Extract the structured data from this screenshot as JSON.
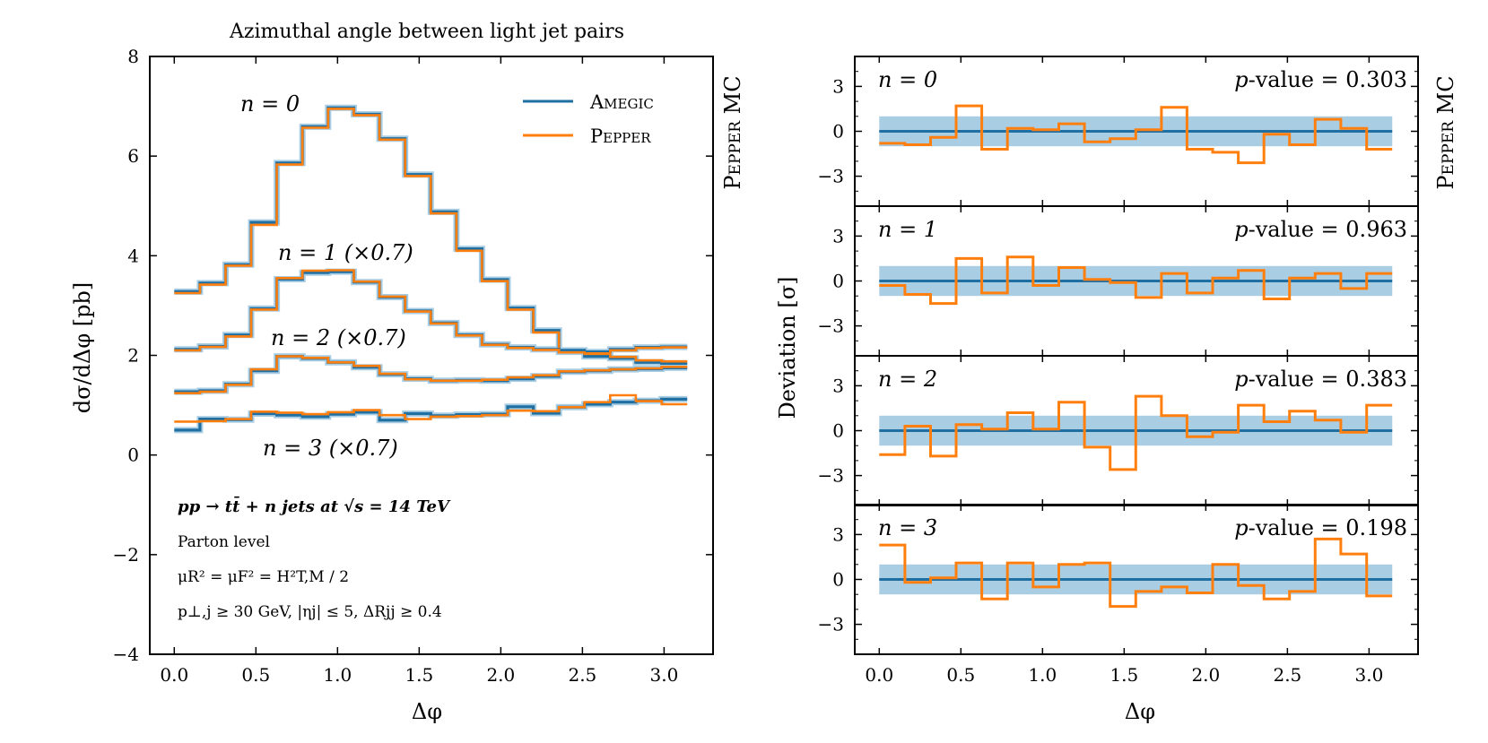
{
  "colors": {
    "blue": "#1f6fa3",
    "orange": "#ff7f0e",
    "band": "#a9cde3"
  },
  "left_panel": {
    "title": "Azimuthal angle between light jet pairs",
    "side_label": "Pepper MC",
    "legend": [
      "Amegic",
      "Pepper"
    ],
    "curve_labels": [
      "n = 0",
      "n = 1 (×0.7)",
      "n = 2 (×0.7)",
      "n = 3 (×0.7)"
    ],
    "annotations": {
      "process": "pp → tt̄ + n jets at √s = 14 TeV",
      "level": "Parton level",
      "scale": "μR² = μF² = H²T,M / 2",
      "cuts": "p⊥,j ≥ 30 GeV, |ηj| ≤ 5, ΔRjj ≥ 0.4"
    }
  },
  "right_panel": {
    "side_label": "Pepper MC"
  },
  "chart_data": [
    {
      "type": "line",
      "step": true,
      "title": "Azimuthal angle between light jet pairs",
      "xlabel": "Δφ",
      "ylabel": "dσ/dΔφ [pb]",
      "xlim": [
        -0.15,
        3.3
      ],
      "ylim": [
        -4,
        8
      ],
      "xticks": [
        0.0,
        0.5,
        1.0,
        1.5,
        2.0,
        2.5,
        3.0
      ],
      "xtick_labels": [
        "0.0",
        "0.5",
        "1.0",
        "1.5",
        "2.0",
        "2.5",
        "3.0"
      ],
      "yticks": [
        -4,
        -2,
        0,
        2,
        4,
        6,
        8
      ],
      "ytick_labels": [
        "−4",
        "−2",
        "0",
        "2",
        "4",
        "6",
        "8"
      ],
      "bin_edges": [
        0.0,
        0.157,
        0.314,
        0.471,
        0.628,
        0.785,
        0.942,
        1.1,
        1.257,
        1.414,
        1.571,
        1.728,
        1.885,
        2.042,
        2.199,
        2.356,
        2.513,
        2.67,
        2.827,
        2.985,
        3.142
      ],
      "legend": [
        "Amegic",
        "Pepper"
      ],
      "series": [
        {
          "name": "Amegic",
          "group": "n = 0",
          "values": [
            3.28,
            3.45,
            3.82,
            4.67,
            5.86,
            6.59,
            6.97,
            6.84,
            6.35,
            5.63,
            4.88,
            4.14,
            3.52,
            2.95,
            2.5,
            2.1,
            2.07,
            2.12,
            2.16,
            2.17
          ]
        },
        {
          "name": "Pepper",
          "group": "n = 0",
          "values": [
            3.25,
            3.42,
            3.8,
            4.62,
            5.83,
            6.57,
            6.95,
            6.82,
            6.33,
            5.6,
            4.85,
            4.1,
            3.49,
            2.92,
            2.46,
            2.07,
            2.04,
            2.1,
            2.15,
            2.16
          ]
        },
        {
          "name": "Amegic",
          "group": "n = 1 (×0.7)",
          "values": [
            2.12,
            2.18,
            2.41,
            2.94,
            3.53,
            3.66,
            3.68,
            3.47,
            3.17,
            2.89,
            2.65,
            2.41,
            2.22,
            2.16,
            2.12,
            2.07,
            1.98,
            1.94,
            1.86,
            1.84
          ]
        },
        {
          "name": "Pepper",
          "group": "n = 1 (×0.7)",
          "values": [
            2.1,
            2.17,
            2.38,
            2.92,
            3.55,
            3.7,
            3.71,
            3.48,
            3.18,
            2.88,
            2.64,
            2.4,
            2.21,
            2.15,
            2.11,
            2.06,
            2.03,
            1.97,
            1.9,
            1.88
          ]
        },
        {
          "name": "Amegic",
          "group": "n = 2 (×0.7)",
          "values": [
            1.27,
            1.29,
            1.42,
            1.69,
            1.98,
            1.94,
            1.86,
            1.76,
            1.62,
            1.53,
            1.49,
            1.5,
            1.49,
            1.53,
            1.58,
            1.67,
            1.69,
            1.72,
            1.73,
            1.75
          ]
        },
        {
          "name": "Pepper",
          "group": "n = 2 (×0.7)",
          "values": [
            1.24,
            1.27,
            1.41,
            1.72,
            1.98,
            1.95,
            1.86,
            1.79,
            1.63,
            1.52,
            1.49,
            1.49,
            1.51,
            1.56,
            1.6,
            1.68,
            1.7,
            1.72,
            1.74,
            1.77
          ]
        },
        {
          "name": "Amegic",
          "group": "n = 3 (×0.7)",
          "values": [
            0.5,
            0.72,
            0.71,
            0.83,
            0.8,
            0.77,
            0.82,
            0.86,
            0.7,
            0.83,
            0.79,
            0.81,
            0.82,
            0.97,
            0.84,
            0.96,
            1.02,
            1.06,
            1.09,
            1.12
          ]
        },
        {
          "name": "Pepper",
          "group": "n = 3 (×0.7)",
          "values": [
            0.67,
            0.68,
            0.72,
            0.87,
            0.85,
            0.82,
            0.86,
            0.9,
            0.8,
            0.72,
            0.77,
            0.78,
            0.8,
            0.89,
            0.88,
            0.96,
            1.06,
            1.2,
            1.08,
            1.02
          ]
        }
      ],
      "annotations": [
        "pp → tt̄ + n jets at √s = 14 TeV",
        "Parton level",
        "μR² = μF² = H²T,M / 2",
        "p⊥,j ≥ 30 GeV, |ηj| ≤ 5, ΔRjj ≥ 0.4"
      ]
    },
    {
      "type": "line",
      "step": true,
      "xlabel": "Δφ",
      "ylabel": "Deviation [σ]",
      "xlim": [
        -0.15,
        3.3
      ],
      "ylim": [
        -5,
        5
      ],
      "xticks": [
        0.0,
        0.5,
        1.0,
        1.5,
        2.0,
        2.5,
        3.0
      ],
      "xtick_labels": [
        "0.0",
        "0.5",
        "1.0",
        "1.5",
        "2.0",
        "2.5",
        "3.0"
      ],
      "yticks": [
        -3,
        0,
        3
      ],
      "ytick_labels": [
        "−3",
        "0",
        "3"
      ],
      "band": [
        -1,
        1
      ],
      "bin_edges": [
        0.0,
        0.157,
        0.314,
        0.471,
        0.628,
        0.785,
        0.942,
        1.1,
        1.257,
        1.414,
        1.571,
        1.728,
        1.885,
        2.042,
        2.199,
        2.356,
        2.513,
        2.67,
        2.827,
        2.985,
        3.142
      ],
      "panels": [
        {
          "label": "n = 0",
          "p_value": "0.303",
          "deviation": [
            -0.8,
            -0.9,
            -0.4,
            1.7,
            -1.2,
            0.2,
            0.1,
            0.5,
            -0.7,
            -0.5,
            0.1,
            1.6,
            -1.2,
            -1.4,
            -2.1,
            -0.2,
            -0.9,
            0.8,
            0.2,
            -1.2
          ]
        },
        {
          "label": "n = 1",
          "p_value": "0.963",
          "deviation": [
            -0.3,
            -0.9,
            -1.5,
            1.5,
            -0.8,
            1.6,
            -0.3,
            0.9,
            0.1,
            -0.1,
            -1.1,
            0.5,
            -0.8,
            0.2,
            0.7,
            -1.2,
            0.2,
            0.5,
            -0.5,
            0.5
          ]
        },
        {
          "label": "n = 2",
          "p_value": "0.383",
          "deviation": [
            -1.6,
            0.3,
            -1.7,
            0.4,
            0.1,
            1.2,
            0.1,
            1.9,
            -1.1,
            -2.6,
            2.3,
            1.0,
            -0.4,
            -0.1,
            1.7,
            0.6,
            1.3,
            0.7,
            -0.1,
            1.7
          ]
        },
        {
          "label": "n = 3",
          "p_value": "0.198",
          "deviation": [
            2.3,
            -0.2,
            0.1,
            1.1,
            -1.3,
            1.1,
            -0.5,
            1.0,
            1.1,
            -1.8,
            -0.8,
            -0.5,
            -0.9,
            1.0,
            -0.4,
            -1.3,
            -0.8,
            2.7,
            1.7,
            -1.1
          ]
        }
      ]
    }
  ]
}
